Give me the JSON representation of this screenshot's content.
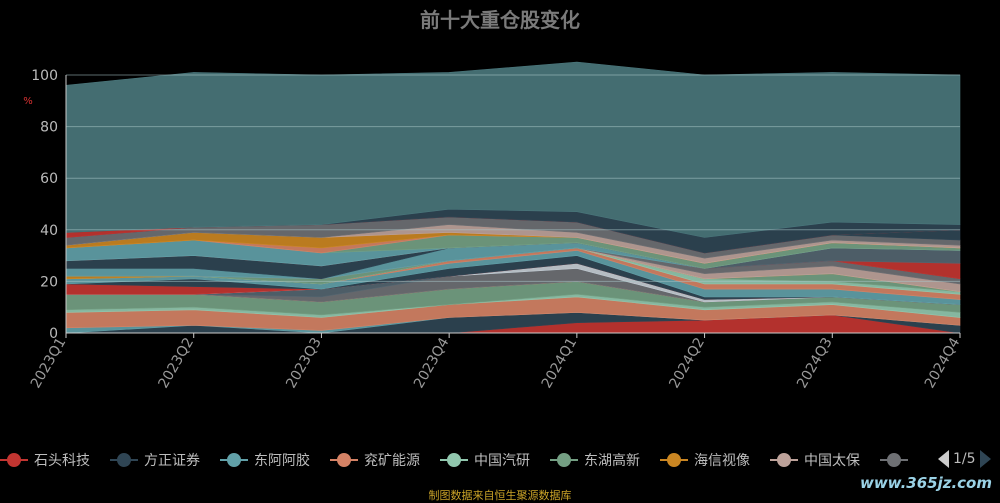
{
  "title": "前十大重仓股变化",
  "source_note": "制图数据来自恒生聚源数据库",
  "watermark": "www.365jz.com",
  "pager": {
    "text": "1/5"
  },
  "chart_data": {
    "type": "area",
    "stacked": true,
    "title": "前十大重仓股变化",
    "ylabel": "%",
    "ylim": [
      0,
      100
    ],
    "yticks": [
      0,
      20,
      40,
      60,
      80,
      100
    ],
    "grid": true,
    "legend_position": "bottom",
    "categories": [
      "2023Q1",
      "2023Q2",
      "2023Q3",
      "2023Q4",
      "2024Q1",
      "2024Q2",
      "2024Q3",
      "2024Q4"
    ],
    "series": [
      {
        "name": "",
        "color": "#c23531",
        "values": [
          0,
          0,
          0,
          0,
          4,
          5,
          7,
          0
        ]
      },
      {
        "name": "",
        "color": "#2f4554",
        "values": [
          0,
          3,
          0,
          6,
          4,
          0,
          0,
          3
        ]
      },
      {
        "name": "",
        "color": "#61a0a8",
        "values": [
          2,
          0,
          1,
          0,
          0,
          0,
          0,
          0
        ]
      },
      {
        "name": "",
        "color": "#d48265",
        "values": [
          6,
          6,
          5,
          5,
          6,
          4,
          4,
          3
        ]
      },
      {
        "name": "",
        "color": "#91c7ae",
        "values": [
          1,
          1,
          1,
          0,
          1,
          1,
          1,
          2
        ]
      },
      {
        "name": "",
        "color": "#749f83",
        "values": [
          6,
          5,
          5,
          6,
          5,
          2,
          2,
          3
        ]
      },
      {
        "name": "",
        "color": "#ca8622",
        "values": [
          0,
          0,
          0,
          0,
          0,
          0,
          0,
          0
        ]
      },
      {
        "name": "",
        "color": "#bda29a",
        "values": [
          0,
          0,
          0,
          0,
          0,
          0,
          0,
          0
        ]
      },
      {
        "name": "",
        "color": "#6e7074",
        "values": [
          0,
          0,
          2,
          5,
          5,
          0,
          0,
          0
        ]
      },
      {
        "name": "",
        "color": "#546570",
        "values": [
          0,
          0,
          3,
          0,
          0,
          0,
          0,
          0
        ]
      },
      {
        "name": "",
        "color": "#c4ccd3",
        "values": [
          0,
          0,
          0,
          0,
          2,
          1,
          0,
          0
        ]
      },
      {
        "name": "",
        "color": "#c23531",
        "values": [
          4,
          3,
          0,
          0,
          0,
          0,
          0,
          0
        ]
      },
      {
        "name": "",
        "color": "#2f4554",
        "values": [
          0,
          3,
          0,
          3,
          3,
          1,
          0,
          0
        ]
      },
      {
        "name": "",
        "color": "#61a0a8",
        "values": [
          2,
          1,
          2,
          2,
          2,
          3,
          3,
          2
        ]
      },
      {
        "name": "",
        "color": "#d48265",
        "values": [
          0,
          0,
          0,
          1,
          1,
          2,
          2,
          2
        ]
      },
      {
        "name": "",
        "color": "#91c7ae",
        "values": [
          0,
          0,
          0,
          0,
          0,
          2,
          1,
          1
        ]
      },
      {
        "name": "",
        "color": "#749f83",
        "values": [
          0,
          0,
          2,
          0,
          0,
          0,
          3,
          0
        ]
      },
      {
        "name": "",
        "color": "#ca8622",
        "values": [
          1,
          0,
          0,
          0,
          0,
          0,
          0,
          0
        ]
      },
      {
        "name": "",
        "color": "#bda29a",
        "values": [
          0,
          0,
          0,
          0,
          0,
          2,
          3,
          3
        ]
      },
      {
        "name": "",
        "color": "#6e7074",
        "values": [
          0,
          0,
          0,
          0,
          0,
          2,
          2,
          2
        ]
      },
      {
        "name": "",
        "color": "#61a0a8",
        "values": [
          3,
          3,
          0,
          5,
          2,
          0,
          0,
          0
        ]
      },
      {
        "name": "",
        "color": "#2f4554",
        "values": [
          3,
          5,
          5,
          0,
          0,
          0,
          0,
          0
        ]
      },
      {
        "name": "",
        "color": "#c23531",
        "values": [
          0,
          0,
          0,
          0,
          0,
          0,
          0,
          6
        ]
      },
      {
        "name": "",
        "color": "#546570",
        "values": [
          0,
          0,
          0,
          0,
          0,
          0,
          5,
          5
        ]
      },
      {
        "name": "",
        "color": "#61a0a8",
        "values": [
          5,
          6,
          5,
          0,
          0,
          0,
          0,
          0
        ]
      },
      {
        "name": "",
        "color": "#749f83",
        "values": [
          0,
          0,
          0,
          5,
          2,
          2,
          2,
          1
        ]
      },
      {
        "name": "",
        "color": "#d48265",
        "values": [
          0,
          0,
          2,
          0,
          0,
          0,
          0,
          0
        ]
      },
      {
        "name": "",
        "color": "#ca8622",
        "values": [
          1,
          3,
          4,
          1,
          0,
          0,
          0,
          0
        ]
      },
      {
        "name": "",
        "color": "#bda29a",
        "values": [
          0,
          0,
          0,
          3,
          2,
          2,
          1,
          1
        ]
      },
      {
        "name": "",
        "color": "#6e7074",
        "values": [
          3,
          2,
          5,
          3,
          4,
          2,
          2,
          2
        ]
      },
      {
        "name": "",
        "color": "#2f4554",
        "values": [
          0,
          0,
          0,
          0,
          0,
          0,
          0,
          4
        ]
      },
      {
        "name": "",
        "color": "#c23531",
        "values": [
          2,
          0,
          0,
          0,
          0,
          0,
          0,
          0
        ]
      },
      {
        "name": "",
        "color": "#2f4554",
        "values": [
          0,
          0,
          0,
          3,
          4,
          6,
          5,
          2
        ]
      },
      {
        "name": "",
        "color": "#4a767b",
        "values": [
          57,
          60,
          58,
          53,
          58,
          63,
          58,
          58
        ]
      }
    ],
    "legend": [
      {
        "name": "石头科技",
        "color": "#c23531"
      },
      {
        "name": "方正证券",
        "color": "#2f4554"
      },
      {
        "name": "东阿阿胶",
        "color": "#61a0a8"
      },
      {
        "name": "兖矿能源",
        "color": "#d48265"
      },
      {
        "name": "中国汽研",
        "color": "#91c7ae"
      },
      {
        "name": "东湖高新",
        "color": "#749f83"
      },
      {
        "name": "海信视像",
        "color": "#ca8622"
      },
      {
        "name": "中国太保",
        "color": "#bda29a"
      },
      {
        "name": "",
        "color": "#6e7074"
      }
    ]
  }
}
